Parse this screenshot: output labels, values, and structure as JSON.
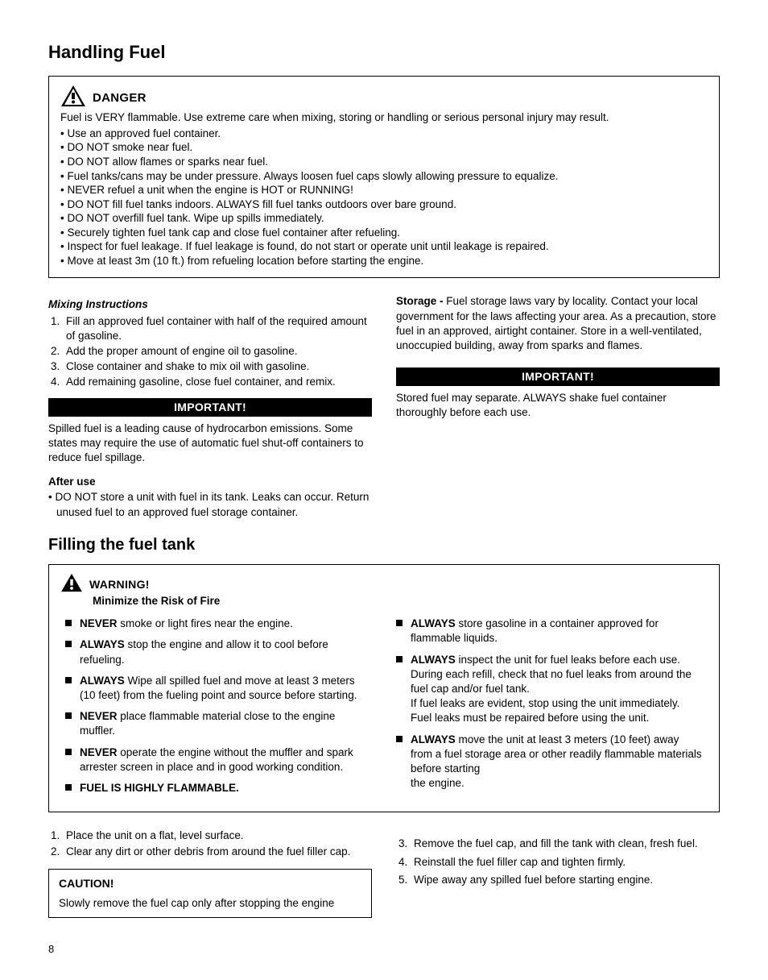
{
  "title": "Handling Fuel",
  "danger": {
    "label": "DANGER",
    "intro": "Fuel is VERY flammable. Use extreme care when mixing, storing or handling or serious personal injury may result.",
    "bullets": [
      "• Use an approved fuel container.",
      "• DO NOT smoke near fuel.",
      "• DO NOT allow flames or sparks near fuel.",
      "• Fuel tanks/cans may be under pressure. Always loosen fuel caps slowly allowing pressure to equalize.",
      "• NEVER refuel a unit when the engine is HOT or RUNNING!",
      "• DO NOT fill fuel tanks indoors. ALWAYS fill fuel tanks outdoors over bare ground.",
      "• DO NOT overfill fuel tank.  Wipe up spills immediately.",
      "• Securely tighten fuel tank cap and close fuel container after refueling.",
      "• Inspect for fuel leakage. If fuel leakage is found, do not start or operate unit until leakage is repaired.",
      "• Move at least 3m (10 ft.) from refueling location before starting the engine."
    ]
  },
  "left_col": {
    "mixing_heading": "Mixing Instructions",
    "mixing_steps": [
      "Fill an approved fuel container with half of the required amount of gasoline.",
      "Add the proper amount of engine oil to gasoline.",
      "Close container and shake to mix oil with gasoline.",
      "Add remaining gasoline,  close fuel container, and remix."
    ],
    "important_label": "IMPORTANT!",
    "important_text": "Spilled fuel is a leading cause of hydrocarbon emissions. Some states may require the use of automatic fuel shut-off containers to reduce fuel spillage.",
    "after_use_heading": "After use",
    "after_use_bullet": "• DO NOT store a unit with fuel in its tank. Leaks can occur. Return unused fuel to an approved fuel storage container."
  },
  "right_col": {
    "storage_label": "Storage - ",
    "storage_text": "Fuel storage laws vary by locality. Contact your local government for the laws affecting your area. As a precaution, store fuel in an approved, airtight container. Store in a well-ventilated, unoccupied building, away from sparks and flames.",
    "important_label": "IMPORTANT!",
    "important_text": "Stored fuel may separate. ALWAYS shake fuel container thoroughly before each use."
  },
  "filling": {
    "heading": "Filling the fuel tank",
    "warning_label": "WARNING!",
    "warning_sub": "Minimize the Risk of Fire",
    "left": [
      {
        "b": "NEVER",
        "t": " smoke or light fires near the engine."
      },
      {
        "b": "ALWAYS",
        "t": " stop the engine and allow it to cool before refueling."
      },
      {
        "b": "ALWAYS",
        "t": " Wipe all spilled fuel and move at least 3 meters (10 feet) from the fueling point and source before starting."
      },
      {
        "b": "NEVER",
        "t": " place flammable material close to the engine muffler."
      },
      {
        "b": "NEVER",
        "t": " operate the engine without the muffler and spark arrester screen in place and in good working condition."
      },
      {
        "b": "FUEL IS HIGHLY FLAMMABLE.",
        "t": ""
      }
    ],
    "right": [
      {
        "b": "ALWAYS",
        "t": " store gasoline in a container approved for flammable liquids."
      },
      {
        "b": "ALWAYS",
        "t": " inspect the unit for fuel leaks before each use. During each refill, check that no fuel leaks from around the fuel cap and/or fuel tank.\nIf fuel leaks are evident, stop using the unit immediately. Fuel leaks must be repaired before using the unit."
      },
      {
        "b": "ALWAYS",
        "t": " move the unit at least 3 meters (10 feet) away from a fuel storage area or other readily flammable materials before starting\nthe engine."
      }
    ]
  },
  "bottom": {
    "left_steps": [
      "Place the unit on a flat, level surface.",
      "Clear any dirt or other debris from around the fuel filler cap."
    ],
    "caution_label": "CAUTION!",
    "caution_text": "Slowly remove the fuel cap only after stopping the engine",
    "right_steps": [
      "Remove the fuel cap, and fill the tank with clean, fresh fuel.",
      "Reinstall the fuel filler cap and tighten firmly.",
      "Wipe away any spilled fuel before starting engine."
    ]
  },
  "page_number": "8"
}
